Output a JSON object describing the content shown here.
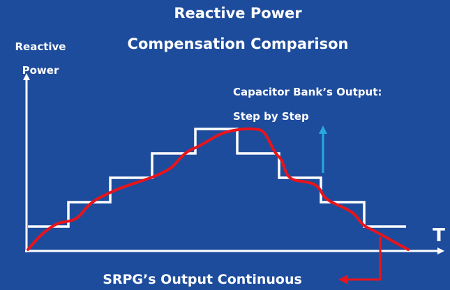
{
  "title": {
    "line1": "Reactive Power",
    "line2": "Compensation Comparison"
  },
  "y_axis_label": {
    "line1": "Reactive",
    "line2": "Power"
  },
  "x_axis_label": "T",
  "capacitor_label": {
    "line1": "Capacitor Bank’s Output:",
    "line2": "Step by Step"
  },
  "srpg_label": "SRPG’s Output Continuous"
}
